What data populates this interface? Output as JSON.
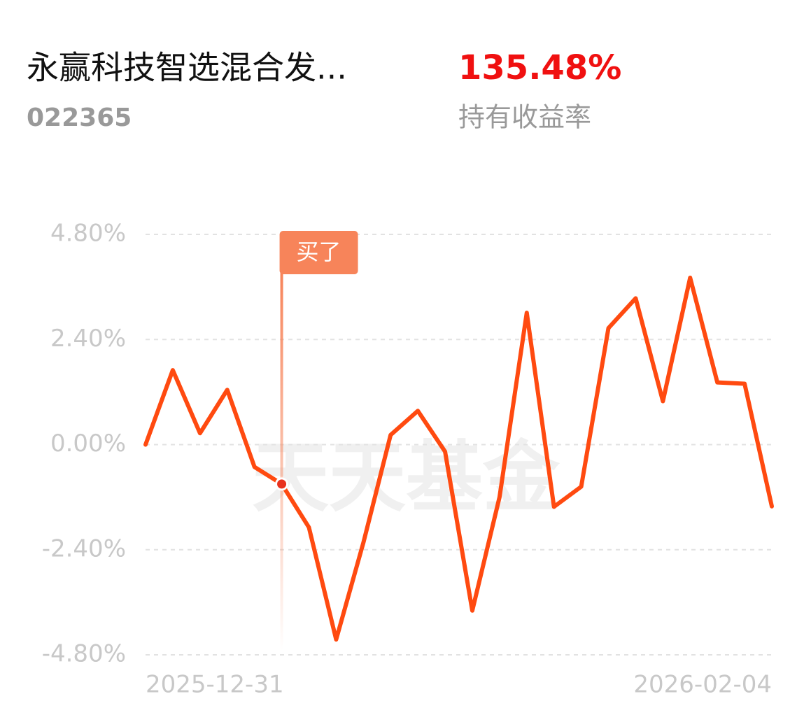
{
  "header": {
    "title": "永赢科技智选混合发...",
    "code": "022365",
    "return": "135.48%",
    "return_label": "持有收益率"
  },
  "chart_data": {
    "type": "line",
    "watermark": "天天基金",
    "categories": [
      "2025-12-31",
      null,
      null,
      null,
      null,
      null,
      null,
      null,
      null,
      null,
      null,
      null,
      null,
      null,
      null,
      null,
      null,
      null,
      null,
      null,
      null,
      null,
      null,
      "2026-02-04"
    ],
    "series": [
      {
        "name": null,
        "color": "#ff4a10",
        "values": [
          0.0,
          1.7,
          0.26,
          1.25,
          -0.51,
          -0.9,
          -1.89,
          -4.45,
          -2.24,
          0.22,
          0.77,
          -0.16,
          -3.79,
          -1.2,
          3.01,
          -1.42,
          -0.96,
          2.66,
          3.34,
          0.99,
          3.81,
          1.42,
          1.39,
          -1.41
        ]
      }
    ],
    "ylim": [
      -4.8,
      4.8
    ],
    "yticks": [
      {
        "value": 4.8,
        "label": "4.80%"
      },
      {
        "value": 2.4,
        "label": "2.40%"
      },
      {
        "value": 0,
        "label": "0.00%"
      },
      {
        "value": -2.4,
        "label": "-2.40%"
      },
      {
        "value": -4.8,
        "label": "-4.80%"
      }
    ],
    "grid": true,
    "buy_marker": {
      "label": "买了",
      "index": 5
    }
  }
}
